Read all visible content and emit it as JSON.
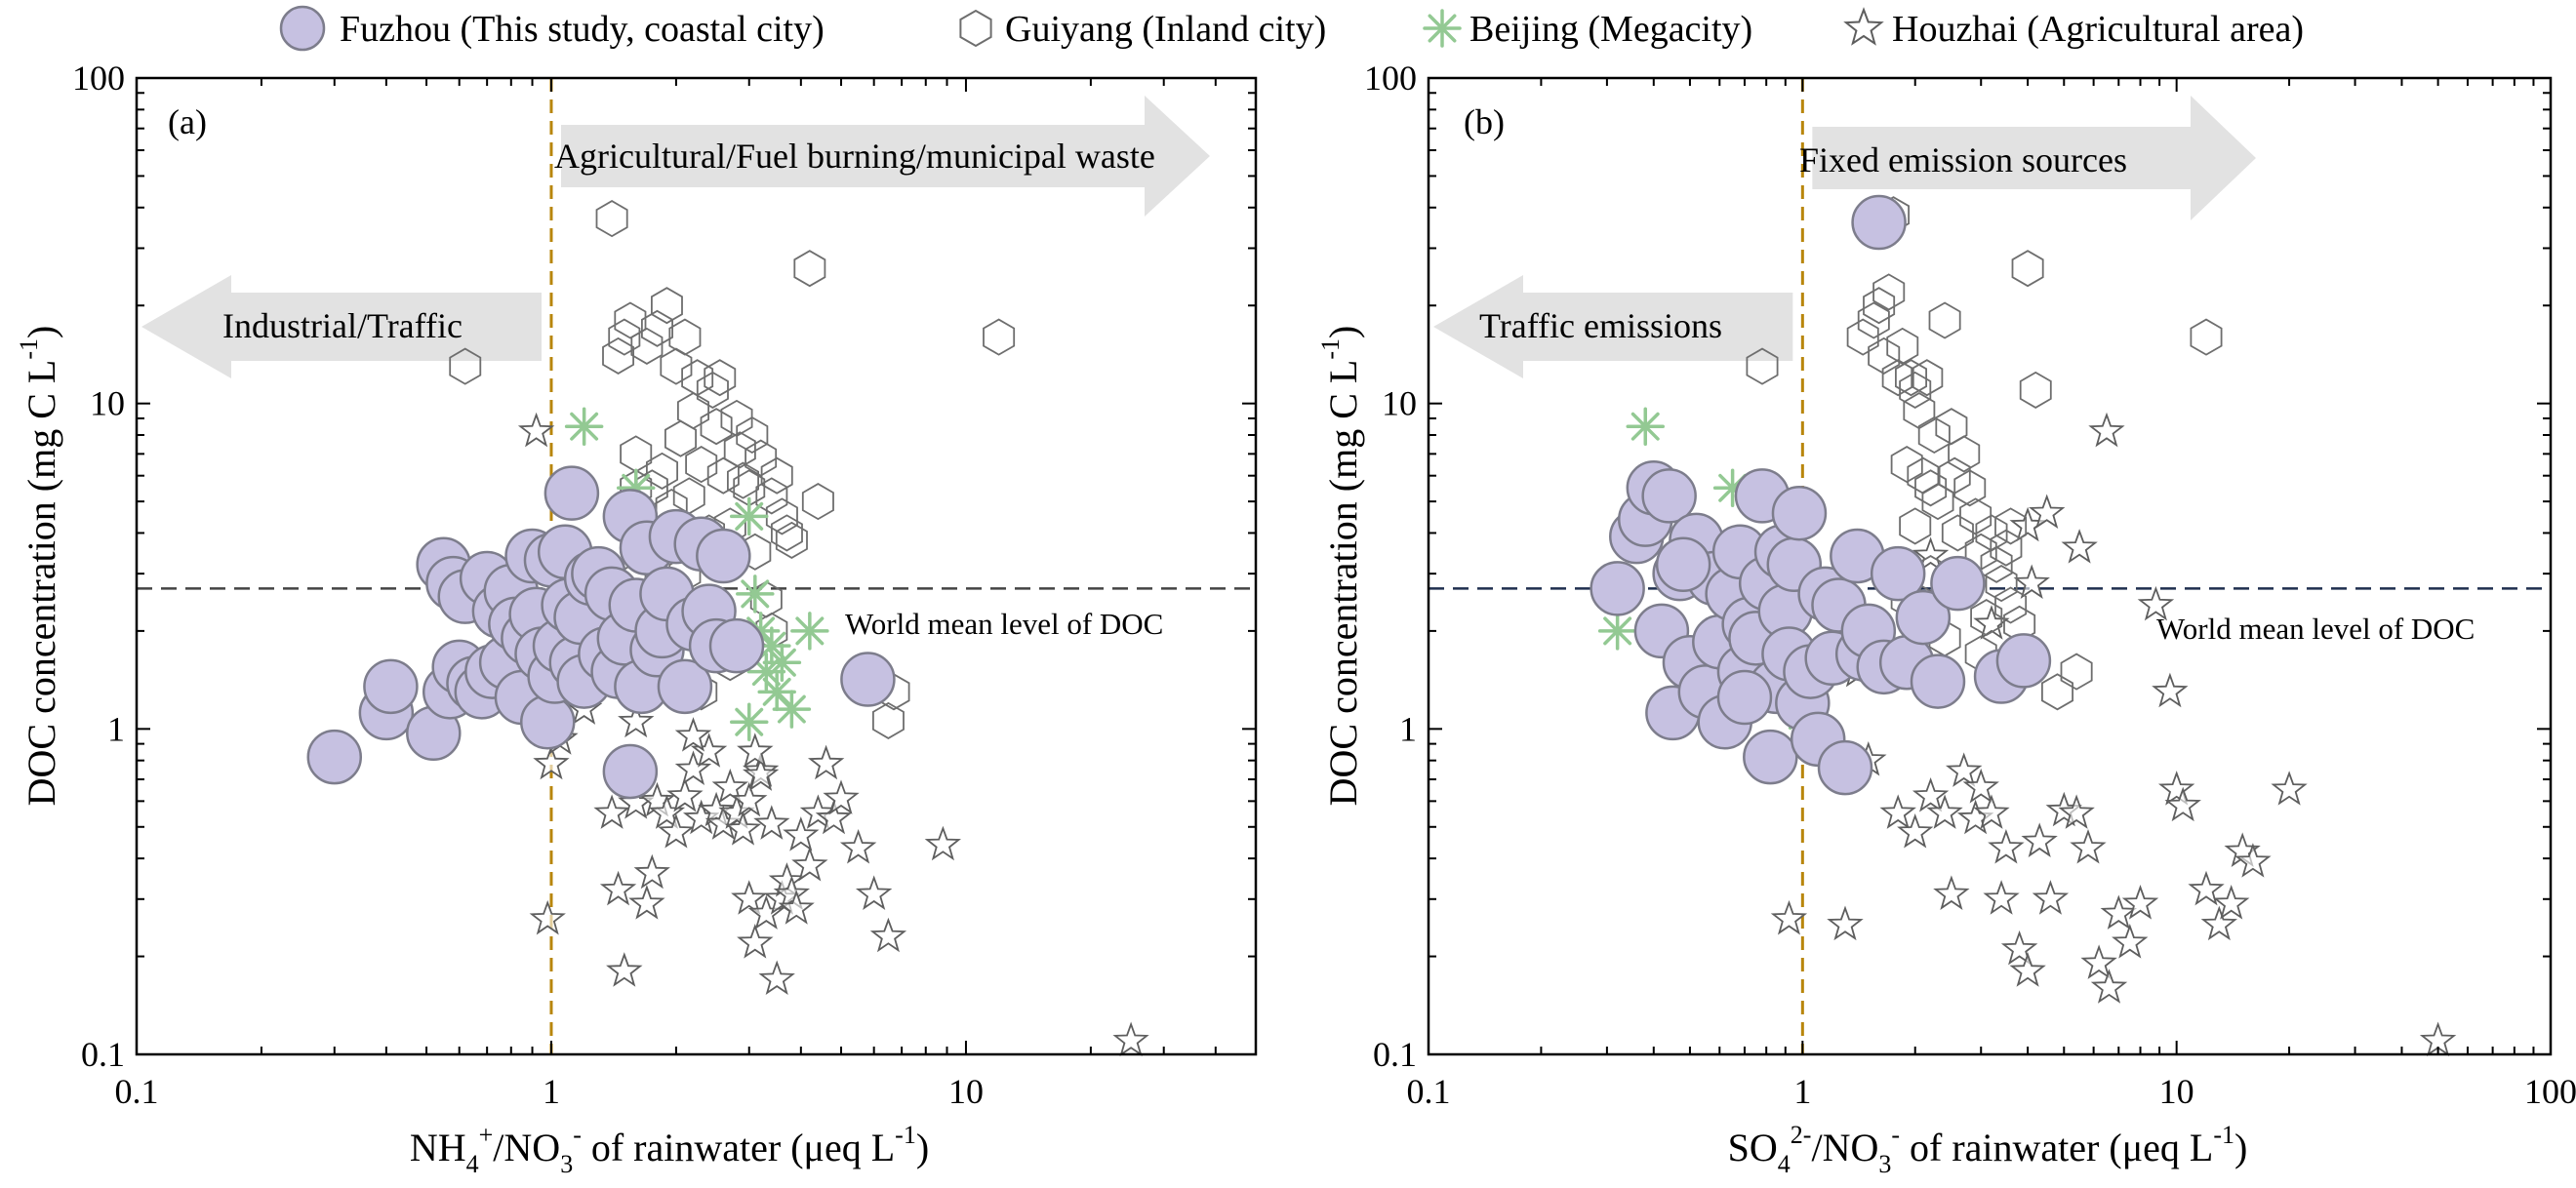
{
  "legend": {
    "fuzhou": "Fuzhou (This study, coastal city)",
    "guiyang": "Guiyang (Inland city)",
    "beijing": "Beijing (Megacity)",
    "houzhai": "Houzhai (Agricultural area)"
  },
  "colors": {
    "fuzhou_fill": "#c6c1e1",
    "fuzhou_stroke": "#7d7d8c",
    "guiyang_stroke": "#6e6e6e",
    "beijing": "#93c993",
    "houzhai_stroke": "#5e5e5e",
    "threshold_line": "#b8860b",
    "arrow_fill": "#e2e2e2"
  },
  "chart_data": [
    {
      "type": "scatter",
      "panel_label": "(a)",
      "xlabel": "NH4+/NO3- of rainwater (μeq L-1)",
      "ylabel": "DOC concentration (mg C L-1)",
      "xscale": "log",
      "yscale": "log",
      "xlim": [
        0.1,
        50
      ],
      "ylim": [
        0.1,
        100
      ],
      "x_ticks": [
        "0.1",
        "1",
        "10"
      ],
      "y_ticks": [
        "0.1",
        "1",
        "10",
        "100"
      ],
      "threshold_x": 1,
      "world_mean_doc": 2.7,
      "world_mean_label": "World mean level of DOC",
      "arrow_left_label": "Industrial/Traffic",
      "arrow_right_label": "Agricultural/Fuel burning/municipal waste",
      "series": [
        {
          "name": "Fuzhou (This study, coastal city)",
          "marker": "circle",
          "x": [
            0.3,
            0.4,
            0.41,
            0.52,
            0.55,
            0.57,
            0.58,
            0.6,
            0.62,
            0.65,
            0.68,
            0.7,
            0.72,
            0.75,
            0.78,
            0.8,
            0.82,
            0.85,
            0.88,
            0.9,
            0.92,
            0.95,
            0.98,
            1.0,
            1.02,
            1.05,
            1.08,
            1.1,
            1.12,
            1.15,
            1.18,
            1.2,
            1.25,
            1.3,
            1.35,
            1.4,
            1.45,
            1.5,
            1.55,
            1.6,
            1.65,
            1.7,
            1.8,
            1.85,
            1.9,
            2.0,
            2.1,
            2.2,
            2.3,
            2.4,
            2.5,
            2.6,
            2.8,
            5.8,
            1.55
          ],
          "y": [
            0.82,
            1.12,
            1.35,
            0.97,
            3.2,
            1.3,
            2.8,
            1.55,
            2.55,
            1.38,
            1.3,
            2.9,
            1.5,
            2.3,
            1.6,
            2.65,
            2.1,
            1.25,
            1.9,
            3.4,
            2.25,
            1.7,
            1.05,
            3.3,
            1.45,
            1.8,
            3.5,
            2.4,
            5.3,
            1.6,
            2.2,
            1.4,
            2.9,
            3.0,
            1.7,
            2.6,
            1.5,
            1.9,
            4.5,
            2.4,
            1.35,
            3.6,
            1.75,
            2.0,
            2.6,
            3.9,
            1.35,
            2.1,
            3.7,
            2.3,
            1.8,
            3.4,
            1.8,
            1.42,
            0.74
          ]
        },
        {
          "name": "Guiyang (Inland city)",
          "marker": "hexagon",
          "x": [
            0.62,
            1.4,
            1.45,
            1.5,
            1.55,
            1.6,
            1.65,
            1.7,
            1.75,
            1.8,
            1.85,
            1.9,
            1.95,
            2.0,
            2.05,
            2.1,
            2.15,
            2.2,
            2.25,
            2.3,
            2.4,
            2.45,
            2.5,
            2.55,
            2.6,
            2.65,
            2.7,
            2.8,
            2.85,
            2.9,
            3.0,
            3.05,
            3.1,
            3.2,
            3.3,
            3.4,
            3.5,
            3.6,
            3.7,
            3.8,
            4.2,
            4.4,
            6.5,
            6.7,
            12.0,
            1.45,
            1.55,
            2.0,
            2.3,
            3.4,
            2.7,
            1.6,
            1.85,
            2.1
          ],
          "y": [
            13,
            37,
            14,
            16,
            18,
            7,
            3.8,
            15,
            5.5,
            17,
            6.2,
            20,
            4.8,
            13,
            7.8,
            16,
            5.2,
            9.5,
            12,
            6.5,
            4,
            11,
            8.5,
            12,
            6,
            3.2,
            4.2,
            9,
            7.2,
            5.8,
            5.5,
            8,
            3.5,
            6.8,
            2.5,
            5.2,
            6,
            4.5,
            4,
            3.8,
            26,
            5,
            1.06,
            1.3,
            16,
            1.5,
            2.8,
            2.2,
            1.3,
            2.0,
            1.6,
            5.5,
            4.0,
            3.0
          ]
        },
        {
          "name": "Beijing (Megacity)",
          "marker": "asterisk",
          "x": [
            1.2,
            1.6,
            3.0,
            3.1,
            3.2,
            3.3,
            3.5,
            3.8,
            4.2,
            3.4,
            3.0,
            3.6
          ],
          "y": [
            8.5,
            5.5,
            4.5,
            2.6,
            2.0,
            1.5,
            1.3,
            1.15,
            2.0,
            1.8,
            1.05,
            1.6
          ],
          "note": "values partly hidden behind other markers"
        },
        {
          "name": "Houzhai (Agricultural area)",
          "marker": "star",
          "x": [
            0.92,
            0.98,
            1.0,
            1.05,
            1.4,
            1.45,
            1.5,
            1.6,
            1.7,
            1.75,
            1.8,
            1.9,
            2.0,
            2.1,
            2.2,
            2.3,
            2.4,
            2.5,
            2.6,
            2.7,
            2.8,
            2.9,
            3.0,
            3.1,
            3.2,
            3.3,
            3.4,
            3.5,
            3.6,
            3.7,
            3.8,
            3.9,
            4.0,
            4.2,
            4.4,
            4.6,
            4.8,
            5.0,
            5.5,
            6.0,
            6.5,
            8.8,
            25.0,
            3.0,
            3.2,
            1.2,
            1.3,
            1.6,
            2.2,
            3.1
          ],
          "y": [
            8.2,
            0.26,
            0.78,
            0.93,
            0.55,
            0.32,
            0.18,
            0.59,
            0.29,
            0.36,
            0.6,
            0.55,
            0.48,
            0.62,
            0.75,
            0.53,
            0.85,
            0.56,
            0.51,
            0.66,
            0.55,
            0.49,
            0.3,
            0.22,
            0.74,
            0.27,
            0.51,
            0.17,
            0.3,
            0.34,
            0.31,
            0.28,
            0.47,
            0.38,
            0.55,
            0.78,
            0.53,
            0.61,
            0.43,
            0.31,
            0.23,
            0.44,
            0.11,
            0.6,
            0.72,
            1.15,
            1.4,
            1.05,
            0.95,
            0.85
          ]
        }
      ]
    },
    {
      "type": "scatter",
      "panel_label": "(b)",
      "xlabel": "SO42-/NO3- of rainwater (μeq L-1)",
      "ylabel": "DOC concentration (mg C L-1)",
      "xscale": "log",
      "yscale": "log",
      "xlim": [
        0.1,
        100
      ],
      "ylim": [
        0.1,
        100
      ],
      "x_ticks": [
        "0.1",
        "1",
        "10",
        "100"
      ],
      "y_ticks": [
        "0.1",
        "1",
        "10",
        "100"
      ],
      "threshold_x": 1,
      "world_mean_doc": 2.7,
      "world_mean_label": "World mean level of DOC",
      "arrow_left_label": "Traffic emissions",
      "arrow_right_label": "Fixed emission sources",
      "series": [
        {
          "name": "Fuzhou (This study, coastal city)",
          "marker": "circle",
          "x": [
            0.32,
            0.36,
            0.38,
            0.4,
            0.42,
            0.44,
            0.45,
            0.47,
            0.5,
            0.52,
            0.55,
            0.58,
            0.6,
            0.62,
            0.65,
            0.68,
            0.7,
            0.72,
            0.75,
            0.78,
            0.8,
            0.82,
            0.85,
            0.88,
            0.9,
            0.92,
            0.95,
            0.98,
            1.0,
            1.05,
            1.1,
            1.15,
            1.2,
            1.25,
            1.3,
            1.4,
            1.45,
            1.5,
            1.6,
            1.65,
            1.8,
            1.9,
            2.1,
            2.3,
            2.6,
            3.4,
            3.9,
            0.48,
            0.7
          ],
          "y": [
            2.7,
            3.9,
            4.4,
            5.5,
            2.0,
            5.2,
            1.12,
            3.0,
            1.6,
            3.8,
            1.3,
            2.9,
            1.85,
            1.05,
            2.6,
            3.5,
            1.5,
            2.1,
            1.9,
            5.2,
            2.8,
            0.82,
            1.35,
            3.5,
            2.3,
            1.7,
            3.2,
            4.6,
            1.2,
            1.5,
            0.93,
            2.6,
            1.65,
            2.4,
            0.76,
            3.4,
            1.7,
            2.0,
            36.0,
            1.55,
            3.0,
            1.6,
            2.2,
            1.4,
            2.8,
            1.45,
            1.62,
            3.2,
            1.25
          ]
        },
        {
          "name": "Guiyang (Inland city)",
          "marker": "hexagon",
          "x": [
            0.78,
            1.45,
            1.55,
            1.6,
            1.65,
            1.7,
            1.75,
            1.8,
            1.85,
            1.9,
            1.95,
            2.0,
            2.05,
            2.1,
            2.15,
            2.2,
            2.25,
            2.3,
            2.4,
            2.5,
            2.55,
            2.6,
            2.7,
            2.8,
            2.9,
            3.0,
            3.1,
            3.2,
            3.3,
            3.4,
            3.5,
            3.6,
            3.8,
            4.0,
            4.2,
            4.8,
            2.0,
            2.2,
            5.4,
            12.0,
            1.9,
            2.4,
            3.0,
            3.6
          ],
          "y": [
            13,
            16,
            18,
            20,
            14,
            22,
            38,
            12,
            15,
            6.5,
            12,
            11,
            9.5,
            6,
            12,
            5.5,
            8,
            5,
            18,
            8.5,
            6,
            4,
            7,
            5.5,
            4.5,
            3.5,
            2.2,
            4,
            3.2,
            2.8,
            3.6,
            4.2,
            2.1,
            26,
            11,
            1.3,
            4.2,
            3.0,
            1.5,
            16,
            2.5,
            1.9,
            1.7,
            2.4
          ]
        },
        {
          "name": "Beijing (Megacity)",
          "marker": "asterisk",
          "x": [
            0.32,
            0.38,
            0.48,
            0.65,
            0.9,
            1.0
          ],
          "y": [
            2.0,
            8.5,
            3.5,
            5.5,
            1.5,
            1.1
          ],
          "note": "values partly hidden behind other markers"
        },
        {
          "name": "Houzhai (Agricultural area)",
          "marker": "star",
          "x": [
            0.92,
            1.3,
            1.5,
            1.8,
            2.0,
            2.2,
            2.4,
            2.5,
            2.7,
            2.9,
            3.0,
            3.2,
            3.4,
            3.5,
            3.8,
            4.0,
            4.3,
            4.6,
            5.0,
            5.4,
            5.8,
            6.2,
            6.6,
            7.0,
            7.5,
            8.0,
            8.8,
            9.6,
            10.0,
            10.4,
            12.0,
            13.0,
            14.0,
            15.0,
            16.0,
            20.0,
            50.0,
            4.0,
            4.5,
            5.5,
            6.5,
            3.2,
            4.1,
            2.2,
            1.4
          ],
          "y": [
            0.26,
            0.25,
            0.8,
            0.55,
            0.48,
            0.62,
            0.55,
            0.31,
            0.74,
            0.53,
            0.66,
            0.55,
            0.3,
            0.43,
            0.21,
            0.18,
            0.45,
            0.3,
            0.56,
            0.55,
            0.43,
            0.19,
            0.16,
            0.27,
            0.22,
            0.29,
            2.4,
            1.3,
            0.65,
            0.58,
            0.32,
            0.25,
            0.29,
            0.42,
            0.39,
            0.65,
            0.11,
            4.2,
            4.6,
            3.6,
            8.2,
            2.1,
            2.8,
            3.4,
            1.5
          ]
        }
      ]
    }
  ]
}
